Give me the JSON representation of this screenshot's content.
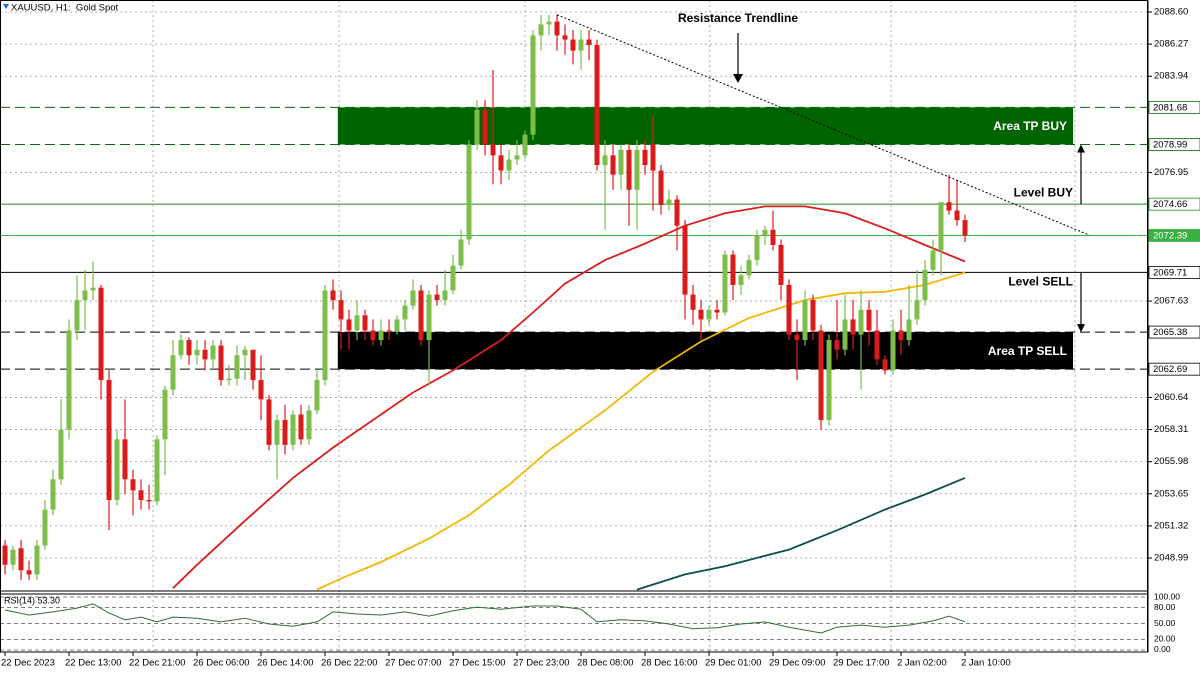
{
  "chart_data": {
    "type": "candlestick",
    "title": "XAUUSD, H1:  Gold Spot",
    "xlim": [
      -0.625,
      142.875
    ],
    "xticks": [
      {
        "value": 0,
        "label": "22 Dec 2023"
      },
      {
        "value": 8,
        "label": "22 Dec 13:00"
      },
      {
        "value": 16,
        "label": "22 Dec 21:00"
      },
      {
        "value": 24,
        "label": "26 Dec 06:00"
      },
      {
        "value": 32,
        "label": "26 Dec 14:00"
      },
      {
        "value": 40,
        "label": "26 Dec 22:00"
      },
      {
        "value": 48,
        "label": "27 Dec 07:00"
      },
      {
        "value": 56,
        "label": "27 Dec 15:00"
      },
      {
        "value": 64,
        "label": "27 Dec 23:00"
      },
      {
        "value": 72,
        "label": "28 Dec 08:00"
      },
      {
        "value": 80,
        "label": "28 Dec 16:00"
      },
      {
        "value": 88,
        "label": "29 Dec 01:00"
      },
      {
        "value": 96,
        "label": "29 Dec 09:00"
      },
      {
        "value": 104,
        "label": "29 Dec 17:00"
      },
      {
        "value": 112,
        "label": "2 Jan 02:00"
      },
      {
        "value": 120,
        "label": "2 Jan 10:00"
      }
    ],
    "xgrid": [
      18.5,
      41.75,
      65,
      88.1,
      110.75,
      133.75
    ],
    "ylim": [
      2046.67,
      2089.47
    ],
    "yticks": [
      {
        "value": 2088.6,
        "label": "2088.60"
      },
      2086.27,
      2083.94,
      2076.95,
      2067.63,
      2060.64,
      2058.31,
      2055.98,
      2053.65,
      2051.32,
      2048.99
    ],
    "grid": true,
    "up_color": "#7dbd4a",
    "down_color": "#dc1a1a",
    "open": [
      2049.9,
      2048.5,
      2049.7,
      2048.1,
      2047.8,
      2049.9,
      2052.5,
      2054.7,
      2058.3,
      2065.5,
      2067.7,
      2068.4,
      2068.6,
      2061.9,
      2053.2,
      2057.6,
      2054.7,
      2053.9,
      2053.2,
      2053.1,
      2057.6,
      2061.2,
      2063.7,
      2064.8,
      2063.7,
      2064.1,
      2063.4,
      2064.4,
      2061.9,
      2062.0,
      2063.7,
      2064.1,
      2061.9,
      2060.5,
      2057.2,
      2059.0,
      2057.2,
      2059.4,
      2057.6,
      2059.7,
      2061.9,
      2068.4,
      2067.7,
      2066.3,
      2065.5,
      2066.6,
      2065.5,
      2064.8,
      2065.5,
      2065.4,
      2066.3,
      2067.3,
      2068.4,
      2064.8,
      2068.1,
      2067.7,
      2068.4,
      2070.2,
      2072.1,
      2079.0,
      2081.5,
      2079.0,
      2078.2,
      2077.1,
      2077.9,
      2078.2,
      2079.7,
      2086.9,
      2087.7,
      2087.9,
      2086.9,
      2086.6,
      2085.8,
      2086.6,
      2086.2,
      2077.5,
      2078.2,
      2076.8,
      2078.6,
      2075.7,
      2078.6,
      2079.0,
      2077.1,
      2074.6,
      2075.0,
      2073.1,
      2068.1,
      2067.0,
      2066.3,
      2067.0,
      2066.8,
      2071.0,
      2068.8,
      2069.5,
      2070.6,
      2072.4,
      2072.8,
      2071.7,
      2068.8,
      2065.2,
      2064.8,
      2067.7,
      2065.5,
      2059.0,
      2064.8,
      2064.1,
      2066.3,
      2065.2,
      2067.0,
      2065.5,
      2063.4,
      2062.6,
      2065.5,
      2064.8,
      2066.3,
      2067.7,
      2069.9,
      2071.3,
      2074.8,
      2074.2,
      2073.5
    ],
    "high": [
      2050.3,
      2049.9,
      2050.3,
      2048.8,
      2050.3,
      2053.2,
      2055.4,
      2060.5,
      2066.3,
      2069.5,
      2069.9,
      2070.5,
      2068.8,
      2062.6,
      2058.3,
      2060.5,
      2055.4,
      2054.7,
      2054.3,
      2057.9,
      2061.5,
      2064.8,
      2065.2,
      2065.0,
      2064.8,
      2064.8,
      2064.8,
      2064.8,
      2063.0,
      2064.4,
      2064.4,
      2064.1,
      2063.7,
      2060.8,
      2059.4,
      2060.1,
      2059.7,
      2060.1,
      2060.1,
      2062.6,
      2068.8,
      2069.2,
      2068.4,
      2067.0,
      2067.7,
      2067.0,
      2066.3,
      2066.3,
      2066.3,
      2066.6,
      2067.7,
      2069.2,
      2068.8,
      2068.4,
      2068.8,
      2069.9,
      2071.0,
      2072.8,
      2079.3,
      2082.2,
      2082.2,
      2084.4,
      2079.0,
      2078.6,
      2079.3,
      2080.0,
      2087.3,
      2088.4,
      2088.4,
      2088.4,
      2087.7,
      2087.3,
      2087.3,
      2087.3,
      2086.6,
      2079.3,
      2079.0,
      2079.0,
      2079.0,
      2079.3,
      2079.3,
      2081.1,
      2077.5,
      2075.7,
      2075.3,
      2073.5,
      2068.8,
      2067.7,
      2067.3,
      2067.7,
      2071.3,
      2071.3,
      2070.2,
      2071.0,
      2072.8,
      2073.1,
      2074.2,
      2072.1,
      2069.2,
      2066.3,
      2068.4,
      2068.1,
      2065.9,
      2065.2,
      2067.7,
      2068.1,
      2067.7,
      2068.4,
      2067.7,
      2067.0,
      2063.7,
      2066.3,
      2067.0,
      2068.8,
      2069.9,
      2070.6,
      2072.1,
      2074.8,
      2076.8,
      2076.4,
      2073.9
    ],
    "low": [
      2047.8,
      2048.1,
      2047.4,
      2047.4,
      2047.4,
      2049.6,
      2052.1,
      2054.3,
      2057.6,
      2064.8,
      2065.5,
      2067.7,
      2060.5,
      2051.0,
      2052.8,
      2053.6,
      2052.1,
      2052.5,
      2052.5,
      2052.8,
      2055.0,
      2060.8,
      2063.4,
      2063.0,
      2063.0,
      2062.6,
      2062.6,
      2061.5,
      2061.5,
      2061.5,
      2061.9,
      2061.2,
      2059.0,
      2056.8,
      2054.7,
      2056.5,
      2056.8,
      2057.2,
      2057.2,
      2059.4,
      2061.5,
      2067.0,
      2064.1,
      2064.1,
      2064.8,
      2064.8,
      2064.4,
      2064.4,
      2064.8,
      2065.2,
      2065.5,
      2067.0,
      2064.4,
      2061.5,
      2067.3,
      2067.3,
      2068.1,
      2069.9,
      2071.7,
      2078.6,
      2078.2,
      2076.1,
      2076.1,
      2076.4,
      2077.5,
      2077.9,
      2079.3,
      2085.8,
      2086.9,
      2085.8,
      2085.5,
      2084.8,
      2084.4,
      2085.1,
      2077.1,
      2072.8,
      2075.7,
      2075.7,
      2073.1,
      2072.8,
      2076.8,
      2074.2,
      2073.9,
      2074.2,
      2071.3,
      2066.3,
      2065.9,
      2064.8,
      2065.9,
      2066.3,
      2066.6,
      2067.7,
      2068.1,
      2069.2,
      2070.2,
      2071.7,
      2071.3,
      2067.7,
      2064.8,
      2061.9,
      2064.4,
      2064.8,
      2058.3,
      2058.6,
      2063.4,
      2063.7,
      2064.1,
      2061.2,
      2064.4,
      2063.0,
      2062.3,
      2062.3,
      2063.7,
      2064.4,
      2065.9,
      2067.3,
      2069.5,
      2069.5,
      2073.9,
      2073.1,
      2071.9
    ],
    "close": [
      2048.5,
      2049.6,
      2048.1,
      2047.8,
      2049.9,
      2052.5,
      2054.7,
      2058.3,
      2065.5,
      2067.7,
      2068.4,
      2068.6,
      2061.9,
      2053.2,
      2057.6,
      2054.7,
      2053.9,
      2053.2,
      2053.1,
      2057.6,
      2061.2,
      2063.7,
      2064.8,
      2063.7,
      2064.1,
      2063.4,
      2064.4,
      2061.9,
      2062.0,
      2063.7,
      2064.1,
      2061.9,
      2060.5,
      2057.2,
      2059.0,
      2057.2,
      2059.4,
      2057.6,
      2059.7,
      2061.9,
      2068.4,
      2067.7,
      2066.3,
      2065.5,
      2066.6,
      2065.5,
      2064.8,
      2065.5,
      2065.4,
      2066.3,
      2067.3,
      2068.4,
      2064.8,
      2068.1,
      2067.7,
      2068.4,
      2070.2,
      2072.1,
      2079.0,
      2081.5,
      2079.0,
      2078.2,
      2077.1,
      2077.9,
      2078.2,
      2079.7,
      2086.9,
      2087.7,
      2087.9,
      2086.9,
      2086.6,
      2085.8,
      2086.6,
      2086.2,
      2077.5,
      2078.2,
      2076.8,
      2078.6,
      2075.7,
      2078.6,
      2077.5,
      2077.1,
      2074.6,
      2075.0,
      2073.1,
      2068.1,
      2067.0,
      2066.3,
      2067.0,
      2066.8,
      2071.0,
      2068.8,
      2069.5,
      2070.6,
      2072.4,
      2072.8,
      2071.7,
      2068.8,
      2065.2,
      2064.8,
      2067.7,
      2065.5,
      2059.0,
      2064.8,
      2064.1,
      2066.3,
      2065.2,
      2067.0,
      2065.5,
      2063.4,
      2062.6,
      2065.5,
      2064.8,
      2066.3,
      2067.7,
      2069.9,
      2071.3,
      2074.8,
      2074.2,
      2073.5,
      2072.4
    ],
    "moving_averages": [
      {
        "color": "#d81e1e",
        "x": [
          21,
          24,
          30,
          36,
          41,
          45,
          51,
          56,
          62,
          66,
          70,
          75,
          80,
          85,
          90,
          95,
          100,
          105,
          110,
          115,
          120
        ],
        "values": [
          2046.8,
          2048.5,
          2051.7,
          2054.8,
          2057.0,
          2058.6,
          2061.0,
          2062.6,
          2064.8,
          2066.8,
          2068.9,
          2070.6,
          2071.8,
          2073.1,
          2074.0,
          2074.5,
          2074.5,
          2074.0,
          2072.9,
          2071.7,
          2070.5
        ]
      },
      {
        "color": "#f2b705",
        "x": [
          39,
          42,
          47,
          53,
          58,
          63,
          68,
          75,
          81,
          87,
          93,
          100,
          105,
          110,
          115,
          120
        ],
        "values": [
          2046.7,
          2047.5,
          2048.7,
          2050.4,
          2052.1,
          2054.3,
          2056.8,
          2059.7,
          2062.5,
          2064.7,
          2066.4,
          2067.7,
          2068.2,
          2068.3,
          2068.8,
          2069.7
        ]
      },
      {
        "color": "#0b4f4f",
        "x": [
          79,
          85,
          90,
          98,
          104,
          110,
          115,
          120
        ],
        "values": [
          2046.7,
          2047.8,
          2048.4,
          2049.6,
          2051.0,
          2052.5,
          2053.6,
          2054.8
        ]
      }
    ],
    "levels": [
      {
        "value": 2081.68,
        "color": "#0b6b0b",
        "style": "dashed",
        "label_fill": "#ffffff",
        "label_text": "#000000"
      },
      {
        "value": 2078.99,
        "color": "#0b6b0b",
        "style": "dashed",
        "label_fill": "#ffffff",
        "label_text": "#000000"
      },
      {
        "value": 2074.66,
        "color": "#1e8c1e",
        "style": "solid",
        "label_fill": "#ffffff",
        "label_text": "#000000"
      },
      {
        "value": 2072.39,
        "color": "#3cb043",
        "style": "solid",
        "label_fill": "#3cb043",
        "label_text": "#ffffff"
      },
      {
        "value": 2069.71,
        "color": "#000000",
        "style": "solid",
        "label_fill": "#ffffff",
        "label_text": "#000000"
      },
      {
        "value": 2065.38,
        "color": "#000000",
        "style": "dashed",
        "label_fill": "#ffffff",
        "label_text": "#000000"
      },
      {
        "value": 2062.69,
        "color": "#000000",
        "style": "dashed",
        "label_fill": "#ffffff",
        "label_text": "#000000"
      }
    ],
    "zones": [
      {
        "label": "Area TP BUY",
        "high": 2081.68,
        "low": 2078.99,
        "color": "#006400",
        "x": [
          41.6,
          133.5
        ]
      },
      {
        "label": "Area TP SELL",
        "high": 2065.38,
        "low": 2062.69,
        "color": "#000000",
        "x": [
          41.6,
          133.5
        ]
      }
    ],
    "level_notes": [
      {
        "label": "Level BUY",
        "value": 2074.66,
        "to": 2078.99,
        "position": "above"
      },
      {
        "label": "Level SELL",
        "value": 2069.71,
        "to": 2065.38,
        "position": "below"
      }
    ],
    "trendline": {
      "label": "Resistance Trendline",
      "x": [
        69,
        135.6
      ],
      "values": [
        2088.4,
        2072.4
      ]
    },
    "rsi": {
      "title": "RSI(14) 53.30",
      "color": "#2f6f2f",
      "ylim": [
        -3.8,
        105.7
      ],
      "yticks": [
        {
          "value": 100,
          "label": "100.00"
        },
        {
          "value": 80,
          "label": "80.00"
        },
        {
          "value": 50,
          "label": "50.00"
        },
        {
          "value": 20,
          "label": "20.00"
        },
        {
          "value": 0,
          "label": "0.00"
        }
      ],
      "x": [
        0,
        3,
        6,
        9,
        11,
        13,
        15,
        17,
        19,
        21,
        24,
        27,
        30,
        33,
        36,
        39,
        41,
        44,
        47,
        50,
        53,
        56,
        59,
        62,
        66,
        69,
        72,
        74,
        77,
        80,
        83,
        86,
        89,
        92,
        95,
        98,
        102,
        104,
        107,
        110,
        113,
        116,
        118,
        120
      ],
      "values": [
        75.5,
        66,
        72,
        79,
        87,
        70,
        57,
        62,
        53,
        62,
        60,
        53,
        60,
        49,
        45,
        53,
        72,
        68,
        66,
        72,
        64,
        74,
        81,
        77,
        83,
        83,
        77,
        53,
        57,
        55,
        49,
        40,
        42,
        49,
        53,
        43,
        32,
        43,
        47,
        43,
        47,
        55,
        64,
        53.3
      ]
    }
  }
}
